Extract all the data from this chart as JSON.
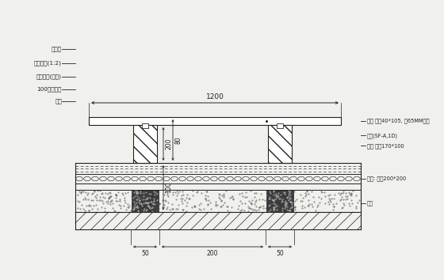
{
  "bg_color": "#f0f0ec",
  "lc": "#222222",
  "left_labels": [
    "防腐板",
    "水泥砂浆(1:2)",
    "防锈处理(刷防)",
    "100厚地板板",
    "柱桩"
  ],
  "right_labels": [
    "楼板 规格40*105, 每65MM点距",
    "钢槽(SF-A,1D)",
    "处理 截面170*100"
  ],
  "right_label2": "钢桩: 截面200*200",
  "right_label3": "桩桩",
  "dim_top": "1200",
  "dim_v1": "200",
  "dim_v2": "80",
  "dim_v3": "100",
  "dim_bottom": [
    "50",
    "200",
    "50"
  ]
}
